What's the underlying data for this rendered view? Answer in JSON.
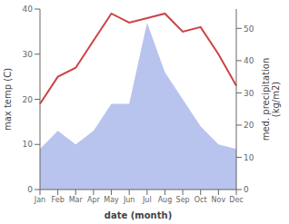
{
  "chart_data": {
    "type": "line",
    "categories": [
      "Jan",
      "Feb",
      "Mar",
      "Apr",
      "May",
      "Jun",
      "Jul",
      "Aug",
      "Sep",
      "Oct",
      "Nov",
      "Dec"
    ],
    "series": [
      {
        "type": "area",
        "color": "#b8c4ee",
        "values": [
          9,
          13,
          10,
          13,
          19,
          19,
          37,
          26,
          20,
          14,
          10,
          9
        ]
      },
      {
        "type": "line",
        "color": "#cc4444",
        "values": [
          19,
          25,
          27,
          33,
          39,
          37,
          38,
          39,
          35,
          36,
          30,
          23
        ]
      }
    ],
    "xlabel": "date (month)",
    "ylabel": "max temp (C)",
    "y2label": "med. precipitation\n(kg/m2)",
    "ylim": [
      0,
      40
    ],
    "yticks": [
      0,
      10,
      20,
      30,
      40
    ],
    "y2lim": [
      0,
      56
    ],
    "y2ticks": [
      0,
      10,
      20,
      30,
      40,
      50
    ],
    "grid": false
  }
}
